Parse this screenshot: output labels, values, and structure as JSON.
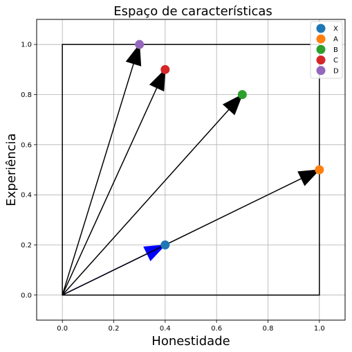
{
  "chart_data": {
    "type": "scatter",
    "title": "Espaço de características",
    "xlabel": "Honestidade",
    "ylabel": "Experiência",
    "xlim": [
      -0.1,
      1.1
    ],
    "ylim": [
      -0.1,
      1.1
    ],
    "xticks": [
      "0.0",
      "0.2",
      "0.4",
      "0.6",
      "0.8",
      "1.0"
    ],
    "yticks": [
      "0.0",
      "0.2",
      "0.4",
      "0.6",
      "0.8",
      "1.0"
    ],
    "grid": true,
    "legend_position": "top-right",
    "frame_square": {
      "x": [
        0,
        1
      ],
      "y": [
        0,
        1
      ],
      "color": "#000000"
    },
    "series": [
      {
        "name": "X",
        "x": 0.4,
        "y": 0.2,
        "color": "#1f77b4"
      },
      {
        "name": "A",
        "x": 1.0,
        "y": 0.5,
        "color": "#ff7f0e"
      },
      {
        "name": "B",
        "x": 0.7,
        "y": 0.8,
        "color": "#2ca02c"
      },
      {
        "name": "C",
        "x": 0.4,
        "y": 0.9,
        "color": "#d62728"
      },
      {
        "name": "D",
        "x": 0.3,
        "y": 1.0,
        "color": "#9467bd"
      }
    ],
    "vectors": [
      {
        "to": "X",
        "x": 0.4,
        "y": 0.2,
        "color": "#0000ff"
      },
      {
        "to": "A",
        "x": 1.0,
        "y": 0.5,
        "color": "#000000"
      },
      {
        "to": "B",
        "x": 0.7,
        "y": 0.8,
        "color": "#000000"
      },
      {
        "to": "C",
        "x": 0.4,
        "y": 0.9,
        "color": "#000000"
      },
      {
        "to": "D",
        "x": 0.3,
        "y": 1.0,
        "color": "#000000"
      }
    ]
  }
}
